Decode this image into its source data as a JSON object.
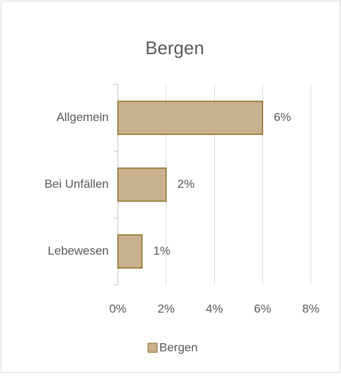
{
  "chart_data": {
    "type": "bar",
    "orientation": "horizontal",
    "title": "Bergen",
    "categories": [
      "Allgemein",
      "Bei Unfällen",
      "Lebewesen"
    ],
    "series": [
      {
        "name": "Bergen",
        "color": "#c9b18f",
        "values": [
          6,
          2,
          1
        ],
        "value_labels": [
          "6%",
          "2%",
          "1%"
        ]
      }
    ],
    "xlim": [
      0,
      8
    ],
    "xticks": [
      {
        "value": 0,
        "label": "0%"
      },
      {
        "value": 2,
        "label": "2%"
      },
      {
        "value": 4,
        "label": "4%"
      },
      {
        "value": 6,
        "label": "6%"
      },
      {
        "value": 8,
        "label": "8%"
      }
    ],
    "grid": true,
    "legend": "bottom"
  }
}
